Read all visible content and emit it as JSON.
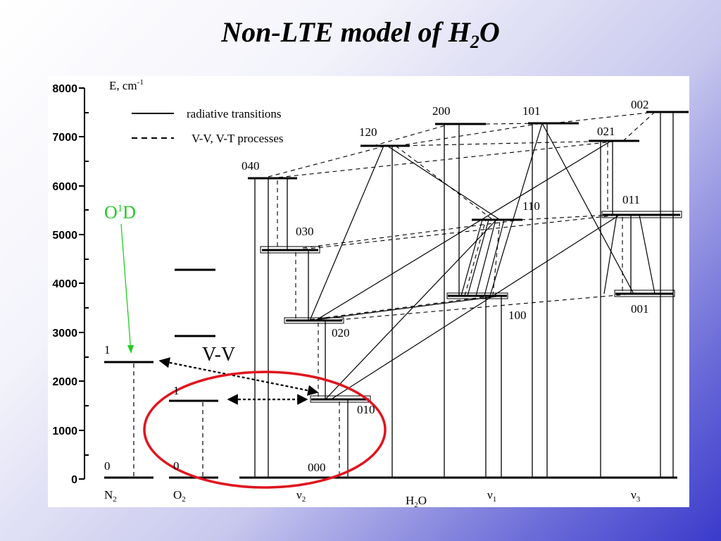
{
  "title": {
    "main": "Non-LTE model of H",
    "sub": "2",
    "tail": "O"
  },
  "y_axis": {
    "label": "E, cm",
    "label_sup": "-1",
    "ticks": [
      "0",
      "1000",
      "2000",
      "3000",
      "4000",
      "5000",
      "6000",
      "7000",
      "8000"
    ]
  },
  "legend": {
    "solid": "radiative transitions",
    "dashed": "V-V, V-T processes"
  },
  "columns": {
    "n2": {
      "text": "N",
      "sub": "2"
    },
    "o2": {
      "text": "O",
      "sub": "2"
    },
    "nu2": {
      "text": "ν",
      "sub": "2"
    },
    "h2o": {
      "text": "H",
      "sub": "2",
      "tail": "O"
    },
    "nu1": {
      "text": "ν",
      "sub": "1"
    },
    "nu3": {
      "text": "ν",
      "sub": "3"
    }
  },
  "annotations": {
    "o1d": {
      "text": "O",
      "sup": "1",
      "tail": "D",
      "color": "#22cc22"
    },
    "vv": "V-V",
    "circle_color": "#e0141e"
  },
  "levels": {
    "n2_0": "0",
    "n2_1": "1",
    "o2_0": "0",
    "o2_1": "1",
    "l000": "000",
    "l010": "010",
    "l020": "020",
    "l030": "030",
    "l040": "040",
    "l100": "100",
    "l110": "110",
    "l120": "120",
    "l200": "200",
    "l101": "101",
    "l001": "001",
    "l011": "011",
    "l021": "021",
    "l002": "002"
  },
  "chart_data": {
    "type": "diagram",
    "energy_levels_cm-1": {
      "N2": {
        "0": 0,
        "1": 2331
      },
      "O2": {
        "0": 0,
        "1": 1556
      },
      "H2O": {
        "000": 0,
        "010": 1595,
        "020": 3152,
        "030": 4667,
        "040": 6134,
        "100": 3657,
        "110": 5235,
        "120": 6775,
        "200": 7201,
        "101": 7250,
        "001": 3756,
        "011": 5331,
        "021": 6871,
        "002": 7445
      }
    }
  }
}
